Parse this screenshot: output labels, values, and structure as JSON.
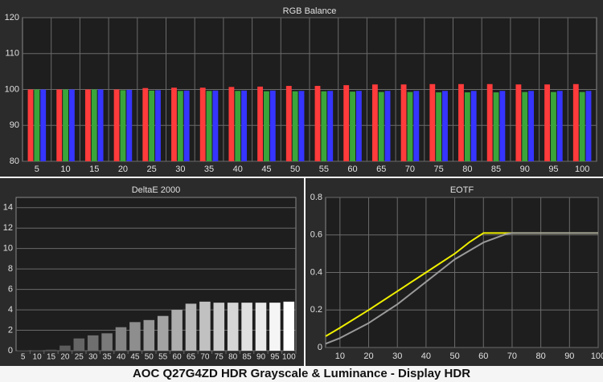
{
  "footer_title": "AOC Q27G4ZD HDR Grayscale & Luminance - Display HDR",
  "colors": {
    "panel_bg": "#2b2b2b",
    "plot_bg": "#1e1e1e",
    "grid": "#6a6a6a",
    "text": "#e0e0e0",
    "red": "#ff3b3b",
    "green": "#3aa53a",
    "blue": "#3535ff",
    "yellow": "#f0f000",
    "gray_curve": "#9a9a9a"
  },
  "chart_data": [
    {
      "type": "bar",
      "title": "RGB Balance",
      "categories": [
        "5",
        "10",
        "15",
        "20",
        "25",
        "30",
        "35",
        "40",
        "45",
        "50",
        "55",
        "60",
        "65",
        "70",
        "75",
        "80",
        "85",
        "90",
        "95",
        "100"
      ],
      "ylim": [
        80,
        120
      ],
      "yticks": [
        80,
        90,
        100,
        110,
        120
      ],
      "series": [
        {
          "color": "red",
          "values": [
            100,
            100,
            100,
            100,
            100.4,
            100.5,
            100.5,
            100.7,
            100.8,
            101,
            101,
            101.2,
            101.4,
            101.4,
            101.5,
            101.5,
            101.5,
            101.4,
            101.4,
            101.5
          ]
        },
        {
          "color": "green",
          "values": [
            100,
            100,
            100,
            99.8,
            99.7,
            99.6,
            99.6,
            99.6,
            99.5,
            99.5,
            99.5,
            99.4,
            99.3,
            99.3,
            99.2,
            99.2,
            99.2,
            99.3,
            99.3,
            99.3
          ]
        },
        {
          "color": "blue",
          "values": [
            100,
            100,
            100,
            99.9,
            99.8,
            99.7,
            99.7,
            99.7,
            99.7,
            99.6,
            99.6,
            99.6,
            99.6,
            99.6,
            99.6,
            99.6,
            99.6,
            99.6,
            99.6,
            99.6
          ]
        }
      ],
      "grid": true
    },
    {
      "type": "bar",
      "title": "DeltaE 2000",
      "categories": [
        "5",
        "10",
        "15",
        "20",
        "25",
        "30",
        "35",
        "40",
        "45",
        "50",
        "55",
        "60",
        "65",
        "70",
        "75",
        "80",
        "85",
        "90",
        "95",
        "100"
      ],
      "ylim": [
        0,
        15
      ],
      "yticks": [
        0,
        2,
        4,
        6,
        8,
        10,
        12,
        14
      ],
      "values": [
        0.05,
        0.05,
        0.1,
        0.5,
        1.2,
        1.5,
        1.7,
        2.3,
        2.8,
        3.0,
        3.4,
        4.0,
        4.6,
        4.8,
        4.7,
        4.7,
        4.7,
        4.7,
        4.7,
        4.8
      ],
      "grid": true
    },
    {
      "type": "line",
      "title": "EOTF",
      "xlim": [
        5,
        100
      ],
      "ylim": [
        0,
        0.8
      ],
      "xticks": [
        10,
        20,
        30,
        40,
        50,
        60,
        70,
        80,
        90,
        100
      ],
      "yticks": [
        0,
        0.2,
        0.4,
        0.6,
        0.8
      ],
      "series": [
        {
          "color": "yellow",
          "x": [
            5,
            10,
            20,
            30,
            40,
            50,
            55,
            60,
            61,
            70,
            80,
            90,
            100
          ],
          "y": [
            0.06,
            0.105,
            0.2,
            0.3,
            0.4,
            0.5,
            0.56,
            0.61,
            0.61,
            0.61,
            0.61,
            0.61,
            0.61
          ]
        },
        {
          "color": "gray",
          "x": [
            5,
            10,
            20,
            30,
            40,
            50,
            60,
            68,
            70,
            80,
            90,
            100
          ],
          "y": [
            0.02,
            0.05,
            0.13,
            0.23,
            0.35,
            0.47,
            0.56,
            0.605,
            0.61,
            0.61,
            0.61,
            0.61
          ]
        }
      ],
      "grid": true
    }
  ]
}
